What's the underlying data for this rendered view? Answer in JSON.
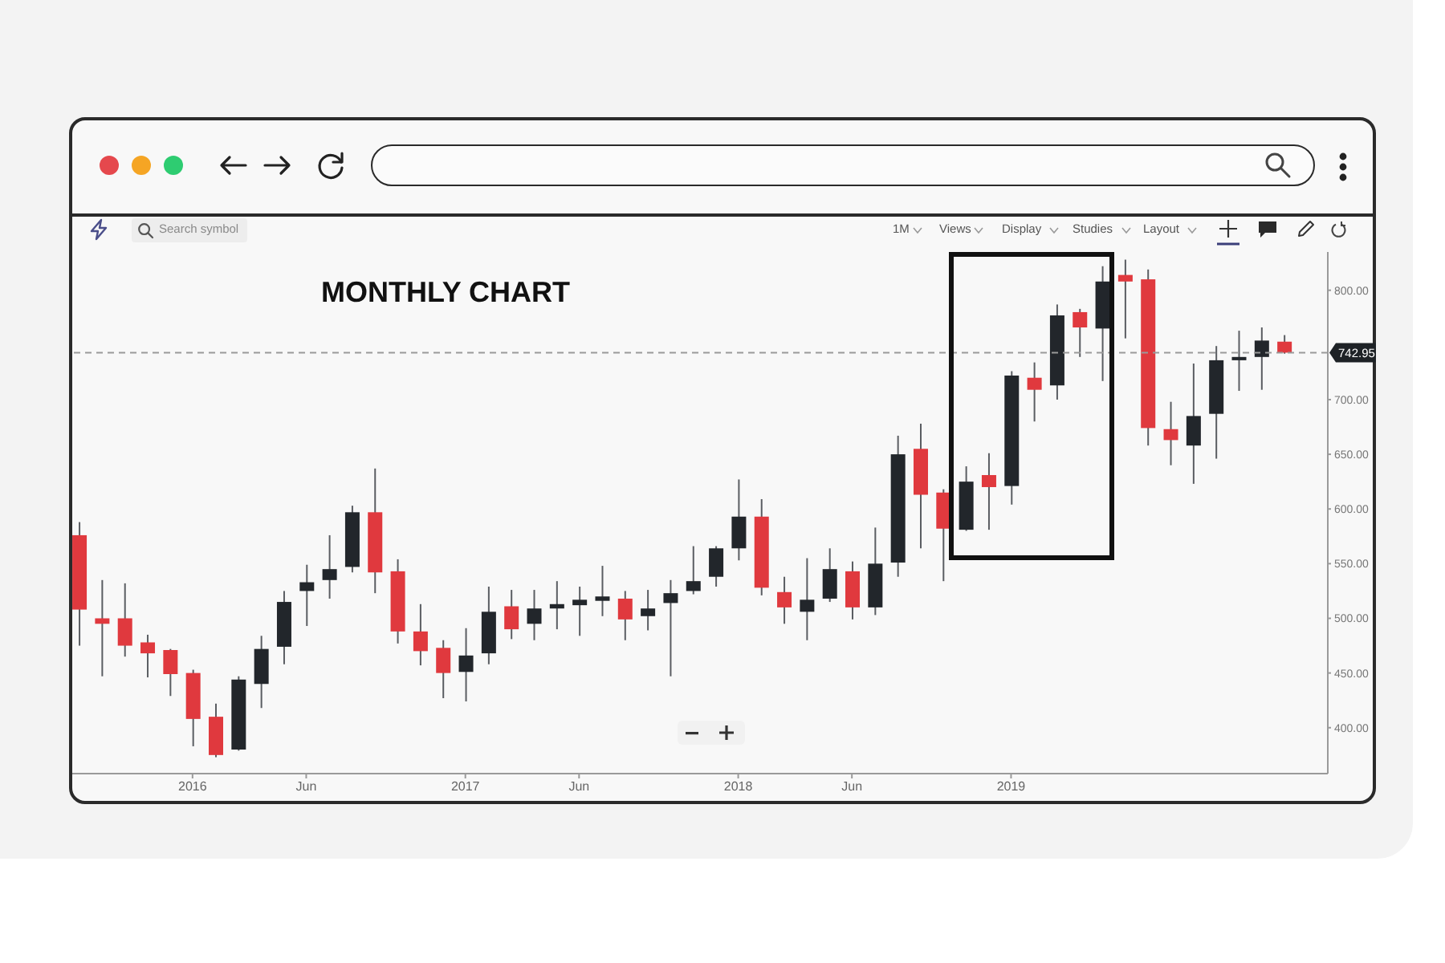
{
  "chart_data": {
    "type": "candlestick",
    "title": "MONTHLY CHART",
    "x": [
      "2015-08",
      "2015-09",
      "2015-10",
      "2015-11",
      "2015-12",
      "2016-01",
      "2016-02",
      "2016-03",
      "2016-04",
      "2016-05",
      "2016-06",
      "2016-07",
      "2016-08",
      "2016-09",
      "2016-10",
      "2016-11",
      "2016-12",
      "2017-01",
      "2017-02",
      "2017-03",
      "2017-04",
      "2017-05",
      "2017-06",
      "2017-07",
      "2017-08",
      "2017-09",
      "2017-10",
      "2017-11",
      "2017-12",
      "2018-01",
      "2018-02",
      "2018-03",
      "2018-04",
      "2018-05",
      "2018-06",
      "2018-07",
      "2018-08",
      "2018-09",
      "2018-10",
      "2018-11",
      "2018-12",
      "2019-01",
      "2019-02",
      "2019-03",
      "2019-04",
      "2019-05",
      "2019-06",
      "2019-07",
      "2019-08",
      "2019-09",
      "2019-10",
      "2019-11",
      "2019-12",
      "2020-01"
    ],
    "ohlc": [
      [
        576,
        588,
        475,
        508
      ],
      [
        500,
        535,
        447,
        495
      ],
      [
        500,
        532,
        465,
        475
      ],
      [
        478,
        485,
        446,
        468
      ],
      [
        471,
        472,
        429,
        449
      ],
      [
        450,
        453,
        383,
        408
      ],
      [
        410,
        422,
        373,
        375
      ],
      [
        380,
        447,
        379,
        444
      ],
      [
        440,
        484,
        418,
        472
      ],
      [
        474,
        525,
        458,
        515
      ],
      [
        525,
        549,
        493,
        533
      ],
      [
        535,
        576,
        518,
        545
      ],
      [
        547,
        603,
        542,
        597
      ],
      [
        597,
        637,
        523,
        542
      ],
      [
        543,
        554,
        477,
        488
      ],
      [
        488,
        513,
        457,
        470
      ],
      [
        473,
        480,
        427,
        450
      ],
      [
        451,
        491,
        424,
        466
      ],
      [
        468,
        529,
        458,
        506
      ],
      [
        511,
        526,
        481,
        490
      ],
      [
        495,
        526,
        480,
        509
      ],
      [
        509,
        534,
        490,
        513
      ],
      [
        512,
        529,
        484,
        517
      ],
      [
        516,
        548,
        502,
        520
      ],
      [
        518,
        525,
        480,
        499
      ],
      [
        502,
        526,
        489,
        509
      ],
      [
        514,
        535,
        447,
        523
      ],
      [
        525,
        566,
        522,
        534
      ],
      [
        538,
        566,
        529,
        564
      ],
      [
        564,
        627,
        553,
        593
      ],
      [
        593,
        609,
        521,
        528
      ],
      [
        524,
        538,
        495,
        510
      ],
      [
        506,
        555,
        480,
        517
      ],
      [
        518,
        564,
        515,
        545
      ],
      [
        543,
        552,
        499,
        510
      ],
      [
        510,
        583,
        503,
        550
      ],
      [
        551,
        667,
        538,
        650
      ],
      [
        655,
        678,
        564,
        613
      ],
      [
        615,
        618,
        534,
        582
      ],
      [
        581,
        639,
        580,
        625
      ],
      [
        631,
        651,
        581,
        620
      ],
      [
        621,
        726,
        604,
        722
      ],
      [
        720,
        734,
        680,
        709
      ],
      [
        713,
        787,
        700,
        777
      ],
      [
        780,
        783,
        739,
        766
      ],
      [
        765,
        822,
        717,
        808
      ],
      [
        814,
        828,
        756,
        808
      ],
      [
        810,
        819,
        658,
        674
      ],
      [
        673,
        698,
        640,
        663
      ],
      [
        658,
        733,
        623,
        685
      ],
      [
        687,
        749,
        646,
        736
      ],
      [
        736,
        763,
        708,
        739
      ],
      [
        739,
        766,
        709,
        754
      ],
      [
        753,
        759,
        742,
        742.95
      ]
    ],
    "colors": [
      "#e0393e",
      "#e0393e",
      "#e0393e",
      "#e0393e",
      "#e0393e",
      "#e0393e",
      "#e0393e",
      "#22262b",
      "#22262b",
      "#22262b",
      "#22262b",
      "#22262b",
      "#22262b",
      "#e0393e",
      "#e0393e",
      "#e0393e",
      "#e0393e",
      "#22262b",
      "#22262b",
      "#e0393e",
      "#22262b",
      "#22262b",
      "#22262b",
      "#22262b",
      "#e0393e",
      "#22262b",
      "#22262b",
      "#22262b",
      "#22262b",
      "#22262b",
      "#e0393e",
      "#e0393e",
      "#22262b",
      "#22262b",
      "#e0393e",
      "#22262b",
      "#22262b",
      "#e0393e",
      "#e0393e",
      "#22262b",
      "#e0393e",
      "#22262b",
      "#e0393e",
      "#22262b",
      "#e0393e",
      "#22262b",
      "#e0393e",
      "#e0393e",
      "#e0393e",
      "#22262b",
      "#22262b",
      "#22262b",
      "#22262b",
      "#e0393e"
    ],
    "xlim": [
      "2015-07-23",
      "2020-02-28"
    ],
    "xticks": [
      {
        "value": "2016-01",
        "label": "2016"
      },
      {
        "value": "2016-06",
        "label": "Jun"
      },
      {
        "value": "2017-01",
        "label": "2017"
      },
      {
        "value": "2017-06",
        "label": "Jun"
      },
      {
        "value": "2018-01",
        "label": "2018"
      },
      {
        "value": "2018-06",
        "label": "Jun"
      },
      {
        "value": "2019-01",
        "label": "2019"
      }
    ],
    "ylim": [
      358,
      835
    ],
    "yticks": [
      {
        "value": 400,
        "label": "400.00"
      },
      {
        "value": 450,
        "label": "450.00"
      },
      {
        "value": 500,
        "label": "500.00"
      },
      {
        "value": 550,
        "label": "550.00"
      },
      {
        "value": 600,
        "label": "600.00"
      },
      {
        "value": 650,
        "label": "650.00"
      },
      {
        "value": 700,
        "label": "700.00"
      },
      {
        "value": 800,
        "label": "800.00"
      }
    ],
    "ref_lines": [
      {
        "axis": "y",
        "value": 742.95,
        "label": "742.95",
        "color": "#9a9a9a",
        "line_style": "dashed"
      }
    ],
    "annotations": [
      "Search symbol",
      "1M",
      "Views",
      "Display",
      "Studies",
      "Layout"
    ]
  }
}
